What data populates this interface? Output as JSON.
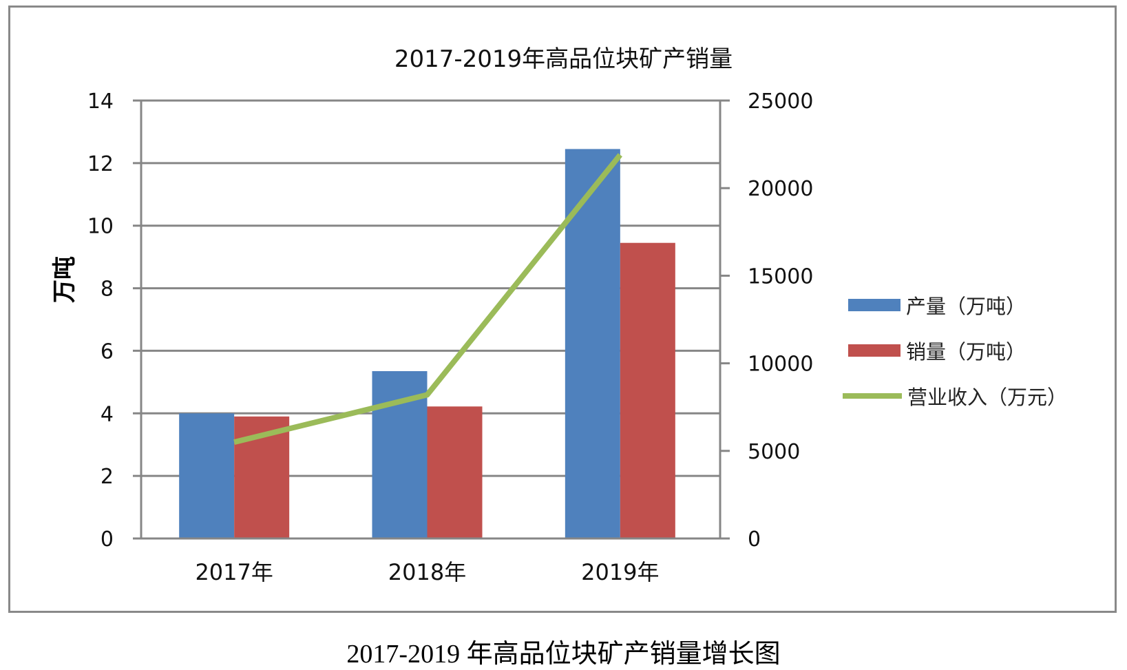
{
  "chart_data": {
    "type": "bar",
    "title": "2017-2019年高品位块矿产销量",
    "caption": "2017-2019 年高品位块矿产销量增长图",
    "categories": [
      "2017年",
      "2018年",
      "2019年"
    ],
    "xlabel": "",
    "ylabel": "万吨",
    "ylabel_right": "",
    "ylim": [
      0,
      14
    ],
    "ylim_right": [
      0,
      25000
    ],
    "yticks": [
      "0",
      "2",
      "4",
      "6",
      "8",
      "10",
      "12",
      "14"
    ],
    "yticks_right": [
      "0",
      "5000",
      "10000",
      "15000",
      "20000",
      "25000"
    ],
    "grid": true,
    "legend_position": "right",
    "series": [
      {
        "name": "产量（万吨）",
        "type": "bar",
        "axis": "left",
        "color": "#4F81BD",
        "values": [
          4.0,
          5.35,
          12.45
        ]
      },
      {
        "name": "销量（万吨）",
        "type": "bar",
        "axis": "left",
        "color": "#C0504D",
        "values": [
          3.9,
          4.22,
          9.45
        ]
      },
      {
        "name": "营业收入（万元）",
        "type": "line",
        "axis": "right",
        "color": "#9BBB59",
        "values": [
          5500,
          8200,
          21900
        ]
      }
    ]
  },
  "legend": {
    "items": [
      {
        "label": "产量（万吨）",
        "color": "#4F81BD",
        "kind": "bar"
      },
      {
        "label": "销量（万吨）",
        "color": "#C0504D",
        "kind": "bar"
      },
      {
        "label": "营业收入（万元）",
        "color": "#9BBB59",
        "kind": "line"
      }
    ]
  }
}
